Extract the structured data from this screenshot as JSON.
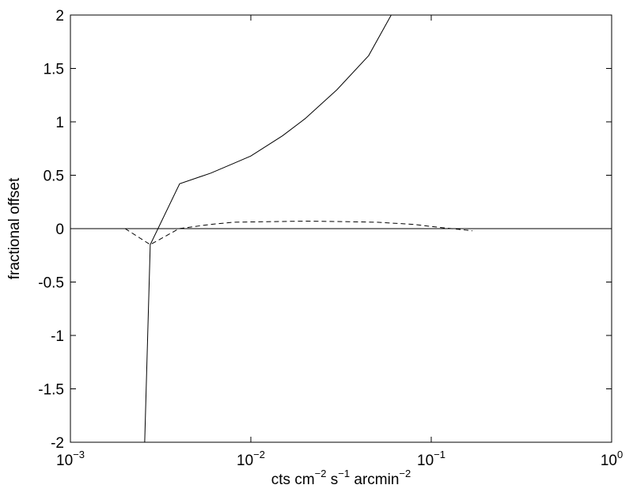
{
  "chart_data": {
    "type": "line",
    "xlabel": [
      "cts cm",
      "−2",
      " s",
      "−1",
      " arcmin",
      "−2"
    ],
    "ylabel": "fractional offset",
    "xscale": "log",
    "xlim": [
      0.001,
      1
    ],
    "xticks": [
      {
        "value": 0.001,
        "label": "10",
        "exponent": "−3"
      },
      {
        "value": 0.01,
        "label": "10",
        "exponent": "−2"
      },
      {
        "value": 0.1,
        "label": "10",
        "exponent": "−1"
      },
      {
        "value": 1,
        "label": "10",
        "exponent": "0"
      }
    ],
    "ylim": [
      -2,
      2
    ],
    "yticks": [
      -2,
      -1.5,
      -1,
      -0.5,
      0,
      0.5,
      1,
      1.5,
      2
    ],
    "grid": false,
    "series": [
      {
        "color": "#000000",
        "dash": "solid",
        "x": [
          0.00258,
          0.00277,
          0.00403,
          0.006,
          0.008,
          0.01,
          0.015,
          0.02,
          0.03,
          0.045,
          0.06
        ],
        "values": [
          -2,
          -0.15,
          0.42,
          0.52,
          0.61,
          0.68,
          0.87,
          1.03,
          1.3,
          1.62,
          2
        ]
      },
      {
        "color": "#000000",
        "dash": "dashed",
        "x": [
          0.00201,
          0.00277,
          0.004,
          0.006,
          0.008,
          0.012,
          0.02,
          0.035,
          0.05,
          0.08,
          0.1,
          0.13,
          0.169
        ],
        "values": [
          0,
          -0.15,
          0,
          0.04,
          0.06,
          0.065,
          0.07,
          0.065,
          0.06,
          0.04,
          0.02,
          0,
          -0.02
        ]
      },
      {
        "color": "#000000",
        "dash": "solid",
        "x": [
          0.001,
          1
        ],
        "values": [
          0,
          0
        ]
      }
    ]
  }
}
